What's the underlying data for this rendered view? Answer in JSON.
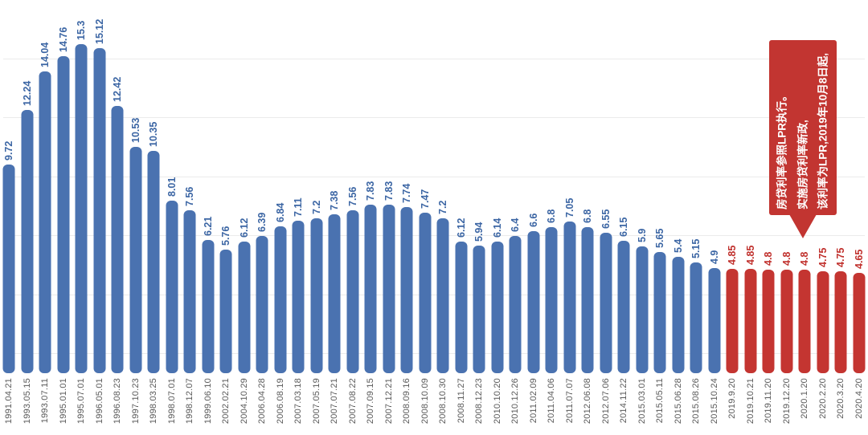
{
  "chart_data": {
    "type": "bar",
    "title": "",
    "xlabel": "",
    "ylabel": "",
    "ylim": [
      0,
      15.5
    ],
    "grid": true,
    "legend": "none",
    "categories": [
      "1991.04.21",
      "1993.05.15",
      "1993.07.11",
      "1995.01.01",
      "1995.07.01",
      "1996.05.01",
      "1996.08.23",
      "1997.10.23",
      "1998.03.25",
      "1998.07.01",
      "1998.12.07",
      "1999.06.10",
      "2002.02.21",
      "2004.10.29",
      "2006.04.28",
      "2006.08.19",
      "2007.03.18",
      "2007.05.19",
      "2007.07.21",
      "2007.08.22",
      "2007.09.15",
      "2007.12.21",
      "2008.09.16",
      "2008.10.09",
      "2008.10.30",
      "2008.11.27",
      "2008.12.23",
      "2010.10.20",
      "2010.12.26",
      "2011.02.09",
      "2011.04.06",
      "2011.07.07",
      "2012.06.08",
      "2012.07.06",
      "2014.11.22",
      "2015.03.01",
      "2015.05.11",
      "2015.06.28",
      "2015.08.26",
      "2015.10.24",
      "2019.9.20",
      "2019.10.21",
      "2019.11.20",
      "2019.12.20",
      "2020.1.20",
      "2020.2.20",
      "2020.3.20",
      "2020.4.20"
    ],
    "values": [
      9.72,
      12.24,
      14.04,
      14.76,
      15.3,
      15.12,
      12.42,
      10.53,
      10.35,
      8.01,
      7.56,
      6.21,
      5.76,
      6.12,
      6.39,
      6.84,
      7.11,
      7.2,
      7.38,
      7.56,
      7.83,
      7.83,
      7.74,
      7.47,
      7.2,
      6.12,
      5.94,
      6.14,
      6.4,
      6.6,
      6.8,
      7.05,
      6.8,
      6.55,
      6.15,
      5.9,
      5.65,
      5.4,
      5.15,
      4.9,
      4.85,
      4.85,
      4.8,
      4.8,
      4.8,
      4.75,
      4.75,
      4.65
    ],
    "highlight_start_index": 40,
    "colors": {
      "bar": "#4a72b0",
      "bar_value_label": "#3c66a4",
      "highlight_bar": "#c43531",
      "highlight_value_label": "#c0302c",
      "date_label": "#595959",
      "gridline": "#ebebeb",
      "callout_bg": "#c23531",
      "callout_text": "#ffffff"
    },
    "annotation": {
      "lines": [
        "该利率为LPR,2019年10月8日起,",
        "实施房贷利率新政,",
        "房贷利率参照LPR执行。"
      ]
    }
  }
}
